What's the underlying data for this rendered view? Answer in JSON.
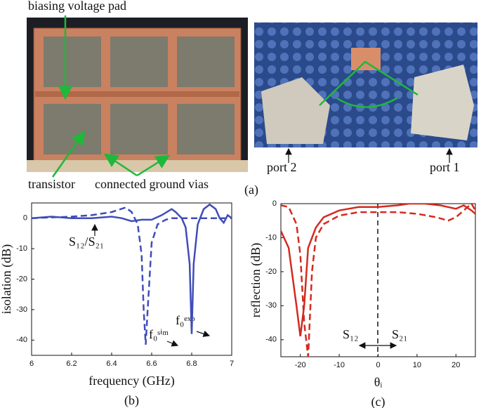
{
  "photos": {
    "labels": [
      "biasing voltage pad",
      "transistor",
      "connected ground vias",
      "port 2",
      "port 1"
    ],
    "caption": "(a)"
  },
  "chart_data": [
    {
      "type": "line",
      "ylabel": "isolation (dB)",
      "xlabel": "frequency (GHz)",
      "caption": "(b)",
      "xlim": [
        6,
        7
      ],
      "xticks": [
        6,
        6.2,
        6.4,
        6.6,
        6.8,
        7
      ],
      "ylim": [
        -45,
        5
      ],
      "yticks": [
        0,
        -10,
        -20,
        -30,
        -40
      ],
      "annotations": [
        "S₁₂/S₂₁",
        "f₀ˢⁱᵐ",
        "f₀ᵉˣᵖ"
      ],
      "series": [
        {
          "color": "#3f4db8",
          "style": "solid",
          "x": [
            6.0,
            6.1,
            6.2,
            6.3,
            6.4,
            6.45,
            6.5,
            6.55,
            6.6,
            6.65,
            6.7,
            6.72,
            6.75,
            6.77,
            6.79,
            6.8,
            6.81,
            6.83,
            6.86,
            6.89,
            6.92,
            6.94,
            6.96,
            6.98,
            7.0
          ],
          "values": [
            0,
            0.5,
            0,
            0,
            0.5,
            0,
            -1,
            -0.5,
            -0.5,
            1,
            3,
            2,
            0,
            -3,
            -15,
            -38,
            -15,
            -2,
            3,
            4.5,
            3,
            0,
            -1.5,
            1,
            0
          ]
        },
        {
          "color": "#3f4db8",
          "style": "dashed",
          "x": [
            6.0,
            6.2,
            6.3,
            6.4,
            6.47,
            6.5,
            6.53,
            6.55,
            6.56,
            6.57,
            6.58,
            6.6,
            6.63,
            6.67,
            6.7,
            6.8,
            6.9,
            7.0
          ],
          "values": [
            0,
            0.5,
            1,
            2,
            3.5,
            2,
            -2,
            -12,
            -30,
            -41.5,
            -30,
            -8,
            -2,
            -0.5,
            0,
            0,
            0,
            0
          ]
        }
      ]
    },
    {
      "type": "line",
      "ylabel": "reflection (dB)",
      "xlabel": "θᵢ",
      "caption": "(c)",
      "xlim": [
        -25,
        25
      ],
      "xticks": [
        -20,
        -10,
        0,
        10,
        20
      ],
      "ylim": [
        -45,
        0
      ],
      "yticks": [
        0,
        -10,
        -20,
        -30,
        -40
      ],
      "annotations": [
        "S₁₂",
        "S₂₁"
      ],
      "series": [
        {
          "color": "#d42a1e",
          "style": "solid",
          "x": [
            -25,
            -23,
            -21,
            -20,
            -19,
            -18,
            -16,
            -14,
            -10,
            -5,
            0,
            5,
            8,
            12,
            16,
            20,
            22,
            24,
            25
          ],
          "values": [
            -8,
            -13,
            -30,
            -39,
            -30,
            -13,
            -7,
            -4,
            -2,
            -1,
            -1,
            -0.5,
            0,
            0,
            -0.5,
            -1.5,
            -0.5,
            -2,
            -3
          ]
        },
        {
          "color": "#d42a1e",
          "style": "dashed",
          "x": [
            -25,
            -23,
            -21,
            -20,
            -19,
            -18,
            -17,
            -16,
            -14,
            -10,
            -5,
            0,
            5,
            10,
            15,
            18,
            20,
            22,
            24,
            25
          ],
          "values": [
            -0.5,
            -1,
            -6,
            -15,
            -35,
            -45,
            -20,
            -10,
            -6,
            -3.5,
            -2.5,
            -2.5,
            -2.5,
            -3,
            -4,
            -5,
            -4,
            -2,
            0,
            -2
          ]
        }
      ]
    }
  ]
}
